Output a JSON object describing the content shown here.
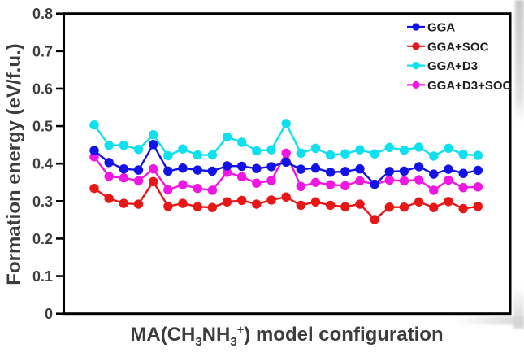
{
  "figure": {
    "background": "#ffffff",
    "border_color": "#000000",
    "text_color": "#3d3d3d",
    "legend_text_color": "#1f1f1f",
    "x_axis_title_parts": [
      {
        "t": "MA(CH",
        "style": "normal"
      },
      {
        "t": "3",
        "style": "sub"
      },
      {
        "t": "NH",
        "style": "normal"
      },
      {
        "t": "3",
        "style": "sub"
      },
      {
        "t": "+",
        "style": "sup"
      },
      {
        "t": ") model configuration",
        "style": "normal"
      }
    ]
  },
  "chart_data": {
    "type": "line",
    "title": "",
    "xlabel": "MA(CH3NH3+) model configuration",
    "ylabel": "Formation energy (eV/f.u.)",
    "ylim": [
      0,
      0.8
    ],
    "ytick_labels": [
      "0",
      "0.1",
      "0.2",
      "0.3",
      "0.4",
      "0.5",
      "0.6",
      "0.7",
      "0.8"
    ],
    "xtick_labels": [],
    "grid": false,
    "legend_position": "top-right-inside",
    "x": [
      1,
      2,
      3,
      4,
      5,
      6,
      7,
      8,
      9,
      10,
      11,
      12,
      13,
      14,
      15,
      16,
      17,
      18,
      19,
      20,
      21,
      22,
      23,
      24,
      25,
      26,
      27
    ],
    "series": [
      {
        "name": "GGA",
        "color": "#1212e6",
        "values": [
          0.435,
          0.403,
          0.386,
          0.383,
          0.451,
          0.38,
          0.388,
          0.383,
          0.38,
          0.394,
          0.393,
          0.387,
          0.392,
          0.404,
          0.385,
          0.388,
          0.377,
          0.379,
          0.386,
          0.345,
          0.379,
          0.38,
          0.392,
          0.372,
          0.385,
          0.374,
          0.382
        ]
      },
      {
        "name": "GGA+SOC",
        "color": "#e81717",
        "values": [
          0.334,
          0.307,
          0.294,
          0.292,
          0.352,
          0.286,
          0.294,
          0.285,
          0.283,
          0.298,
          0.302,
          0.292,
          0.303,
          0.311,
          0.289,
          0.298,
          0.289,
          0.285,
          0.292,
          0.251,
          0.284,
          0.284,
          0.298,
          0.283,
          0.299,
          0.28,
          0.286
        ]
      },
      {
        "name": "GGA+D3",
        "color": "#0fe0ef",
        "values": [
          0.503,
          0.449,
          0.449,
          0.438,
          0.477,
          0.421,
          0.439,
          0.423,
          0.423,
          0.471,
          0.457,
          0.434,
          0.437,
          0.507,
          0.428,
          0.441,
          0.423,
          0.426,
          0.437,
          0.426,
          0.443,
          0.436,
          0.444,
          0.42,
          0.441,
          0.425,
          0.422
        ]
      },
      {
        "name": "GGA+D3+SOC",
        "color": "#f117e3",
        "values": [
          0.418,
          0.366,
          0.362,
          0.354,
          0.386,
          0.33,
          0.344,
          0.334,
          0.329,
          0.377,
          0.365,
          0.348,
          0.355,
          0.428,
          0.339,
          0.35,
          0.344,
          0.341,
          0.354,
          0.345,
          0.356,
          0.354,
          0.357,
          0.329,
          0.356,
          0.336,
          0.338
        ]
      }
    ]
  }
}
